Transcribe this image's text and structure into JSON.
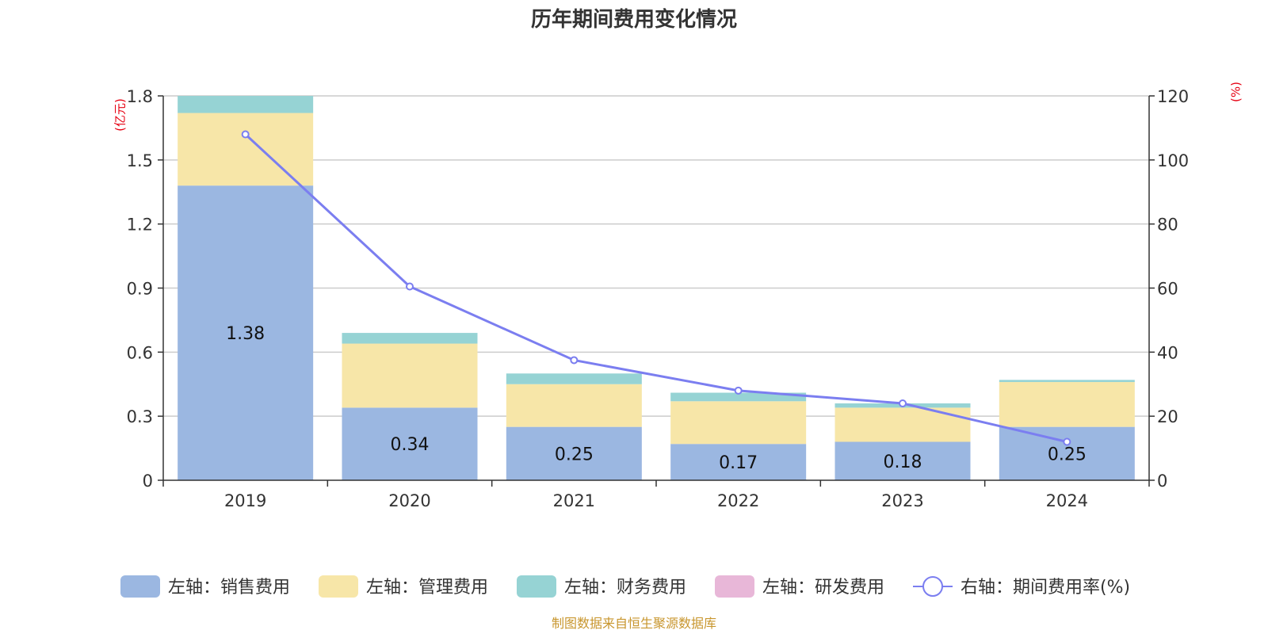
{
  "chart_data": {
    "type": "bar",
    "title": "历年期间费用变化情况",
    "categories": [
      "2019",
      "2020",
      "2021",
      "2022",
      "2023",
      "2024"
    ],
    "left_axis": {
      "unit": "(亿元)",
      "ylim": [
        0,
        1.8
      ],
      "ticks": [
        "0",
        "0.3",
        "0.6",
        "0.9",
        "1.2",
        "1.5",
        "1.8"
      ],
      "tick_values": [
        0,
        0.3,
        0.6,
        0.9,
        1.2,
        1.5,
        1.8
      ]
    },
    "right_axis": {
      "unit": "(%)",
      "ylim": [
        0,
        120
      ],
      "ticks": [
        "0",
        "20",
        "40",
        "60",
        "80",
        "100",
        "120"
      ],
      "tick_values": [
        0,
        20,
        40,
        60,
        80,
        100,
        120
      ]
    },
    "grid": true,
    "legend_position": "bottom",
    "series": [
      {
        "name": "左轴：销售费用",
        "kind": "bar",
        "axis": "left",
        "color": "#9bb7e1",
        "values": [
          1.38,
          0.34,
          0.25,
          0.17,
          0.18,
          0.25
        ],
        "labels": [
          "1.38",
          "0.34",
          "0.25",
          "0.17",
          "0.18",
          "0.25"
        ]
      },
      {
        "name": "左轴：管理费用",
        "kind": "bar",
        "axis": "left",
        "color": "#f7e6a8",
        "values": [
          0.34,
          0.3,
          0.2,
          0.2,
          0.16,
          0.21
        ]
      },
      {
        "name": "左轴：财务费用",
        "kind": "bar",
        "axis": "left",
        "color": "#96d3d4",
        "values": [
          0.08,
          0.05,
          0.05,
          0.04,
          0.02,
          0.01
        ]
      },
      {
        "name": "左轴：研发费用",
        "kind": "bar",
        "axis": "left",
        "color": "#e8b7d8",
        "values": [
          0,
          0,
          0,
          0,
          0,
          0
        ]
      },
      {
        "name": "右轴：期间费用率(%)",
        "kind": "line",
        "axis": "right",
        "color": "#7b7ef0",
        "values": [
          108,
          60.5,
          37.5,
          28,
          24,
          12
        ]
      }
    ]
  },
  "footer": {
    "source": "制图数据来自恒生聚源数据库"
  }
}
